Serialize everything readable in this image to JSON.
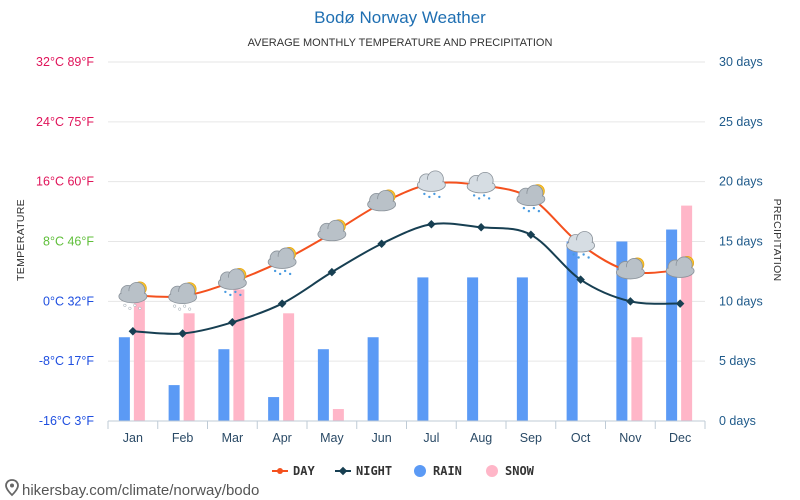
{
  "header": {
    "title": "Bodø Norway Weather",
    "subtitle": "AVERAGE MONTHLY TEMPERATURE AND PRECIPITATION"
  },
  "source": "hikersbay.com/climate/norway/bodo",
  "colors": {
    "day": "#f4511e",
    "night": "#173f52",
    "rain": "#5b9af5",
    "snow": "#ffb6c8",
    "title": "#1f6fb2",
    "rightAxis": "#1f5a8a"
  },
  "chart_data": {
    "type": "line+bar",
    "categories": [
      "Jan",
      "Feb",
      "Mar",
      "Apr",
      "May",
      "Jun",
      "Jul",
      "Aug",
      "Sep",
      "Oct",
      "Nov",
      "Dec"
    ],
    "left_axis": {
      "title": "TEMPERATURE",
      "range_celsius": [
        -16,
        32
      ],
      "ticks": [
        {
          "value": 32,
          "label": "32°C 89°F",
          "color": "#e0145a"
        },
        {
          "value": 24,
          "label": "24°C 75°F",
          "color": "#e0145a"
        },
        {
          "value": 16,
          "label": "16°C 60°F",
          "color": "#e0145a"
        },
        {
          "value": 8,
          "label": "8°C 46°F",
          "color": "#5fbf3a"
        },
        {
          "value": 0,
          "label": "0°C 32°F",
          "color": "#1f4fe0"
        },
        {
          "value": -8,
          "label": "-8°C 17°F",
          "color": "#1f4fe0"
        },
        {
          "value": -16,
          "label": "-16°C 3°F",
          "color": "#1f4fe0"
        }
      ]
    },
    "right_axis": {
      "title": "PRECIPITATION",
      "range_days": [
        0,
        30
      ],
      "ticks": [
        {
          "value": 30,
          "label": "30 days"
        },
        {
          "value": 25,
          "label": "25 days"
        },
        {
          "value": 20,
          "label": "20 days"
        },
        {
          "value": 15,
          "label": "15 days"
        },
        {
          "value": 10,
          "label": "10 days"
        },
        {
          "value": 5,
          "label": "5 days"
        },
        {
          "value": 0,
          "label": "0 days"
        }
      ]
    },
    "series": [
      {
        "name": "DAY",
        "kind": "line",
        "axis": "left",
        "values": [
          0.8,
          0.7,
          2.6,
          5.4,
          9.1,
          13.1,
          15.7,
          15.5,
          13.8,
          7.6,
          4.0,
          4.2
        ]
      },
      {
        "name": "NIGHT",
        "kind": "line",
        "axis": "left",
        "values": [
          -4.0,
          -4.3,
          -2.8,
          -0.3,
          3.9,
          7.7,
          10.3,
          9.9,
          8.9,
          2.9,
          0.0,
          -0.3
        ]
      },
      {
        "name": "RAIN",
        "kind": "bar",
        "axis": "right",
        "values": [
          7,
          3,
          6,
          2,
          6,
          7,
          12,
          12,
          12,
          15,
          15,
          16
        ]
      },
      {
        "name": "SNOW",
        "kind": "bar",
        "axis": "right",
        "values": [
          11,
          9,
          11,
          9,
          1,
          0,
          0,
          0,
          0,
          0,
          7,
          18
        ]
      }
    ],
    "weather_icons": [
      "cloud-snow-sun-icon",
      "cloud-snow-sun-icon",
      "cloud-rain-sun-icon",
      "cloud-rain-sun-icon",
      "cloud-sun-icon",
      "cloud-sun-icon",
      "cloud-rain-icon",
      "cloud-rain-icon",
      "cloud-rain-sun-icon",
      "cloud-rain-icon",
      "cloud-sun-icon",
      "cloud-sun-icon"
    ],
    "legend": [
      {
        "label": "DAY",
        "marker": "line-dot",
        "color": "#f4511e"
      },
      {
        "label": "NIGHT",
        "marker": "line-diamond",
        "color": "#173f52"
      },
      {
        "label": "RAIN",
        "marker": "dot",
        "color": "#5b9af5"
      },
      {
        "label": "SNOW",
        "marker": "dot",
        "color": "#ffb6c8"
      }
    ]
  }
}
